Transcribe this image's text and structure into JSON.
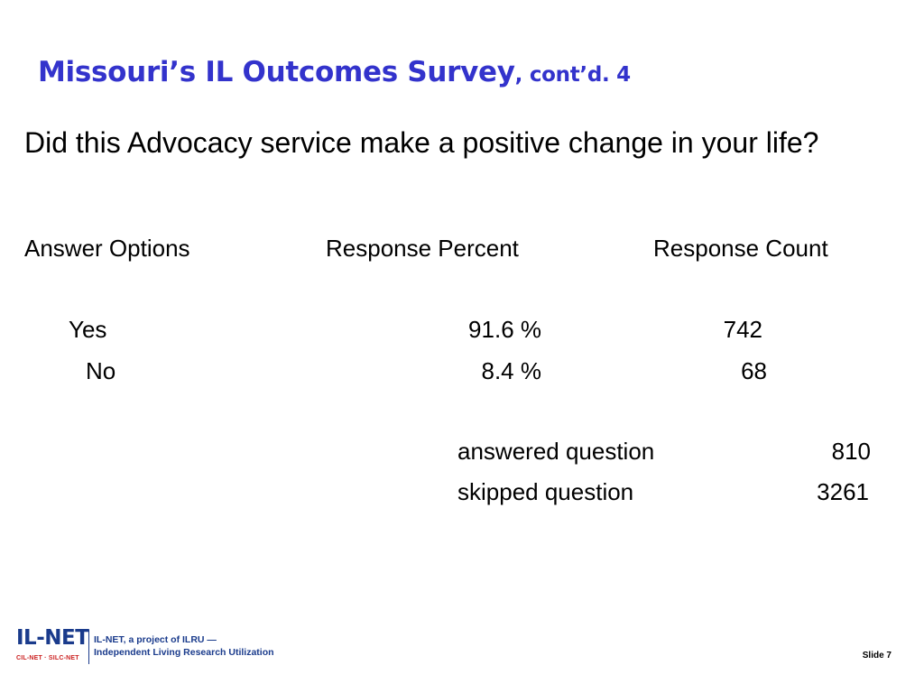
{
  "slide": {
    "title_main": "Missouri’s  IL Outcomes Survey",
    "title_sub": ", cont’d. 4",
    "question": "Did this Advocacy service make a positive change in your life?",
    "headers": {
      "answer_options": "Answer Options",
      "response_percent": "Response Percent",
      "response_count": "Response Count"
    },
    "rows": [
      {
        "option": "Yes",
        "percent": "91.6 %",
        "count": "742"
      },
      {
        "option": "No",
        "percent": "8.4 %",
        "count": "68"
      }
    ],
    "summary": {
      "answered_label": "answered question",
      "answered_value": "810",
      "skipped_label": "skipped question",
      "skipped_value": "3261"
    }
  },
  "footer": {
    "logo": "IL-NET",
    "logo_sub": "CIL-NET · SILC-NET",
    "tagline_line1": "IL-NET, a project of ILRU —",
    "tagline_line2": "Independent Living Research Utilization",
    "slide_label": "Slide 7"
  },
  "colors": {
    "title": "#3333cc",
    "logo_blue": "#1a3b8c",
    "logo_red": "#cc2222"
  }
}
